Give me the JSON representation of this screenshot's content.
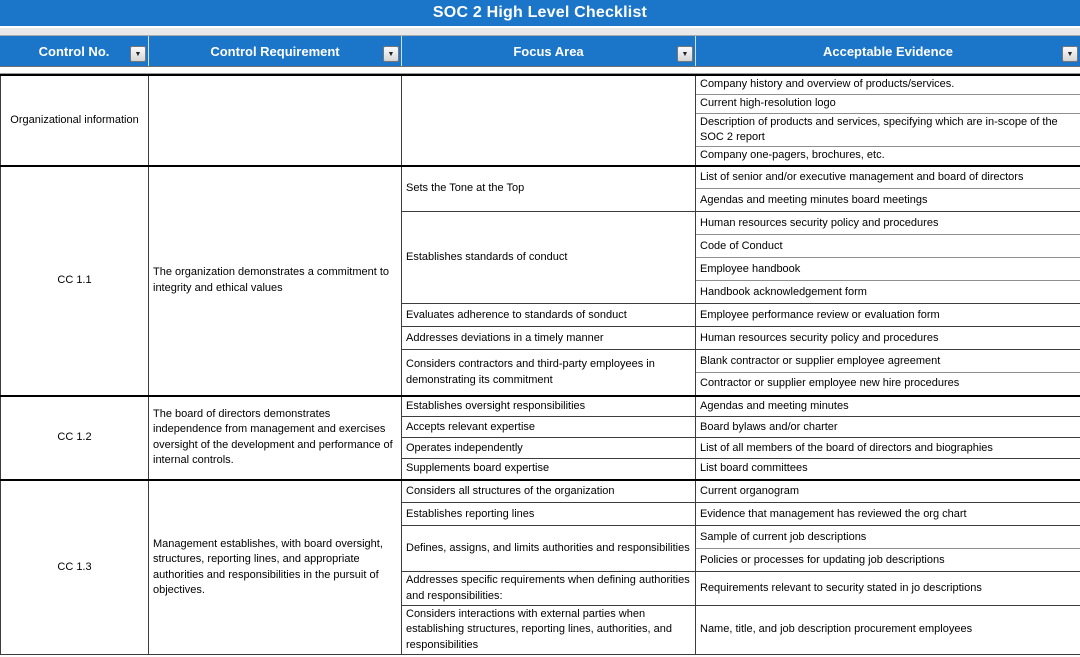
{
  "title": "SOC 2 High Level Checklist",
  "filter_icon": "▼",
  "colors": {
    "header_blue": "#1b75c9",
    "header_text": "#ffffff",
    "grid_border": "#3d3d3d",
    "section_border": "#000000"
  },
  "columns": [
    {
      "label": "Control No."
    },
    {
      "label": "Control Requirement"
    },
    {
      "label": "Focus Area"
    },
    {
      "label": "Acceptable Evidence"
    }
  ],
  "sections": [
    {
      "control_no": "Organizational information",
      "requirement": "",
      "groups": [
        {
          "focus": "",
          "evidence": [
            "Company history and overview of products/services.",
            "Current high-resolution logo",
            "Description of products and services, specifying which are in-scope of the SOC 2 report",
            "Company one-pagers, brochures, etc."
          ]
        }
      ]
    },
    {
      "control_no": "CC 1.1",
      "requirement": "The organization demonstrates a commitment to integrity and ethical values",
      "groups": [
        {
          "focus": "Sets the Tone at the Top",
          "evidence": [
            "List of senior and/or executive management and board of directors",
            "Agendas and meeting minutes board meetings"
          ]
        },
        {
          "focus": "Establishes standards of conduct",
          "evidence": [
            "Human resources security policy and procedures",
            "Code of Conduct",
            "Employee handbook",
            "Handbook acknowledgement form"
          ]
        },
        {
          "focus": "Evaluates adherence to standards of sonduct",
          "evidence": [
            "Employee performance review or evaluation form"
          ]
        },
        {
          "focus": "Addresses deviations in a timely manner",
          "evidence": [
            "Human resources security policy and procedures"
          ]
        },
        {
          "focus": "Considers contractors and third-party employees in demonstrating its commitment",
          "evidence": [
            "Blank contractor or supplier employee agreement",
            "Contractor or supplier employee new hire procedures"
          ]
        }
      ]
    },
    {
      "control_no": "CC 1.2",
      "requirement": "The board of directors demonstrates independence from management and exercises oversight of the development and performance of internal controls.",
      "groups": [
        {
          "focus": "Establishes oversight responsibilities",
          "evidence": [
            "Agendas and meeting minutes"
          ]
        },
        {
          "focus": "Accepts relevant expertise",
          "evidence": [
            "Board bylaws and/or charter"
          ]
        },
        {
          "focus": "Operates independently",
          "evidence": [
            "List of all members of the board of directors and biographies"
          ]
        },
        {
          "focus": "Supplements board expertise",
          "evidence": [
            "List board committees"
          ]
        }
      ]
    },
    {
      "control_no": "CC 1.3",
      "requirement": "Management establishes, with board oversight, structures, reporting lines, and appropriate authorities and responsibilities in the pursuit of objectives.",
      "groups": [
        {
          "focus": "Considers all structures of the organization",
          "evidence": [
            "Current organogram"
          ]
        },
        {
          "focus": "Establishes reporting lines",
          "evidence": [
            "Evidence that management has reviewed the org chart"
          ]
        },
        {
          "focus": "Defines, assigns, and limits authorities and responsibilities",
          "evidence": [
            "Sample of current job descriptions",
            "Policies or processes for updating job descriptions"
          ]
        },
        {
          "focus": "Addresses specific requirements when defining authorities and responsibilities:",
          "evidence": [
            "Requirements relevant to security stated in jo descriptions"
          ]
        },
        {
          "focus": "Considers interactions with external parties when establishing structures, reporting lines, authorities, and responsibilities",
          "evidence": [
            "Name, title, and job description procurement employees"
          ]
        }
      ]
    }
  ]
}
